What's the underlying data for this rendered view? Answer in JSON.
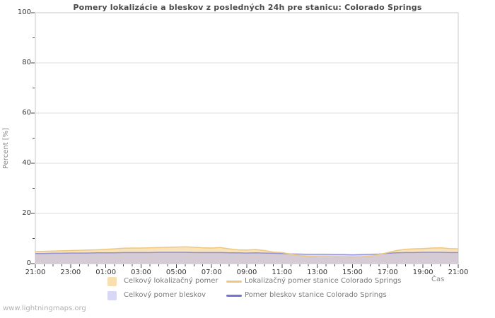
{
  "title": "Pomery lokalizácie a bleskov z posledných 24h pre stanicu: Colorado Springs",
  "footer": "www.lightningmaps.org",
  "chart_data": {
    "type": "area",
    "title": "Pomery lokalizácie a bleskov z posledných 24h pre stanicu: Colorado Springs",
    "xlabel": "Čas",
    "ylabel": "Percent  [%]",
    "ylim": [
      0,
      100
    ],
    "yticks": [
      0,
      20,
      40,
      60,
      80,
      100
    ],
    "y_minor_ticks": [
      10,
      30,
      50,
      70,
      90
    ],
    "x_span": 24,
    "x_step": 0.5,
    "x_tick_labels": [
      "21:00",
      "23:00",
      "01:00",
      "03:00",
      "05:00",
      "07:00",
      "09:00",
      "11:00",
      "13:00",
      "15:00",
      "17:00",
      "19:00",
      "21:00"
    ],
    "grid": "horizontal-only",
    "legend_position": "bottom",
    "colors": {
      "border": "#c8c8c8",
      "grid": "#dcdcdc",
      "tick": "#444444",
      "loc_total_fill": "#f0c87a",
      "lightning_total_fill": "#b4b4ee",
      "loc_station_line": "#eec87e",
      "lightning_station_line": "#7474d2"
    },
    "series": [
      {
        "name": "Celkový lokalizačný pomer",
        "type": "area",
        "fill": "#f0c87a",
        "fill_opacity": 0.5,
        "values": [
          4.8,
          4.9,
          5.0,
          5.1,
          5.2,
          5.3,
          5.4,
          5.5,
          5.7,
          5.9,
          6.1,
          6.2,
          6.2,
          6.3,
          6.4,
          6.5,
          6.6,
          6.7,
          6.5,
          6.3,
          6.2,
          6.4,
          5.9,
          5.5,
          5.4,
          5.6,
          5.2,
          4.6,
          4.4,
          3.8,
          3.2,
          2.9,
          2.8,
          2.8,
          2.7,
          2.7,
          2.6,
          2.7,
          3.0,
          3.6,
          4.4,
          5.2,
          5.7,
          5.9,
          6.0,
          6.2,
          6.3,
          6.0,
          5.9
        ]
      },
      {
        "name": "Celkový pomer bleskov",
        "type": "area",
        "fill": "#b4b4ee",
        "fill_opacity": 0.5,
        "values": [
          4.0,
          4.0,
          4.1,
          4.1,
          4.2,
          4.2,
          4.2,
          4.3,
          4.3,
          4.3,
          4.4,
          4.4,
          4.4,
          4.4,
          4.5,
          4.5,
          4.5,
          4.5,
          4.4,
          4.4,
          4.4,
          4.4,
          4.3,
          4.3,
          4.2,
          4.3,
          4.2,
          4.1,
          4.0,
          3.9,
          3.8,
          3.7,
          3.7,
          3.7,
          3.6,
          3.6,
          3.5,
          3.6,
          3.7,
          3.8,
          4.1,
          4.3,
          4.4,
          4.4,
          4.5,
          4.5,
          4.5,
          4.4,
          4.4
        ]
      },
      {
        "name": "Pomer bleskov stanice Colorado Springs",
        "type": "line",
        "stroke": "#7474d2",
        "opacity": 0.7,
        "values": [
          4.0,
          4.0,
          4.1,
          4.1,
          4.2,
          4.2,
          4.2,
          4.3,
          4.3,
          4.3,
          4.4,
          4.4,
          4.4,
          4.4,
          4.5,
          4.5,
          4.5,
          4.5,
          4.4,
          4.4,
          4.4,
          4.4,
          4.3,
          4.3,
          4.2,
          4.3,
          4.2,
          4.1,
          4.0,
          3.9,
          3.8,
          3.7,
          3.7,
          3.7,
          3.6,
          3.6,
          3.5,
          3.6,
          3.7,
          3.8,
          4.1,
          4.3,
          4.4,
          4.4,
          4.5,
          4.5,
          4.5,
          4.4,
          4.4
        ]
      },
      {
        "name": "Lokalizačný pomer stanice Colorado Springs",
        "type": "line",
        "stroke": "#eec87e",
        "opacity": 1,
        "values": [
          4.8,
          4.9,
          5.0,
          5.1,
          5.2,
          5.3,
          5.4,
          5.5,
          5.7,
          5.9,
          6.1,
          6.2,
          6.2,
          6.3,
          6.4,
          6.5,
          6.6,
          6.7,
          6.5,
          6.3,
          6.2,
          6.4,
          5.9,
          5.5,
          5.4,
          5.6,
          5.2,
          4.6,
          4.4,
          3.8,
          3.2,
          2.9,
          2.8,
          2.8,
          2.7,
          2.7,
          2.6,
          2.7,
          3.0,
          3.6,
          4.4,
          5.2,
          5.7,
          5.9,
          6.0,
          6.2,
          6.3,
          6.0,
          5.9
        ]
      }
    ]
  },
  "legend": {
    "items": [
      {
        "label": "Celkový lokalizačný pomer",
        "type": "area",
        "color": "#f7dfb0"
      },
      {
        "label": "Celkový pomer bleskov",
        "type": "area",
        "color": "#d8d8f6"
      },
      {
        "label": "Lokalizačný pomer stanice Colorado Springs",
        "type": "line",
        "color": "#eec87e"
      },
      {
        "label": "Pomer bleskov stanice Colorado Springs",
        "type": "line",
        "color": "#7474d2"
      }
    ]
  }
}
